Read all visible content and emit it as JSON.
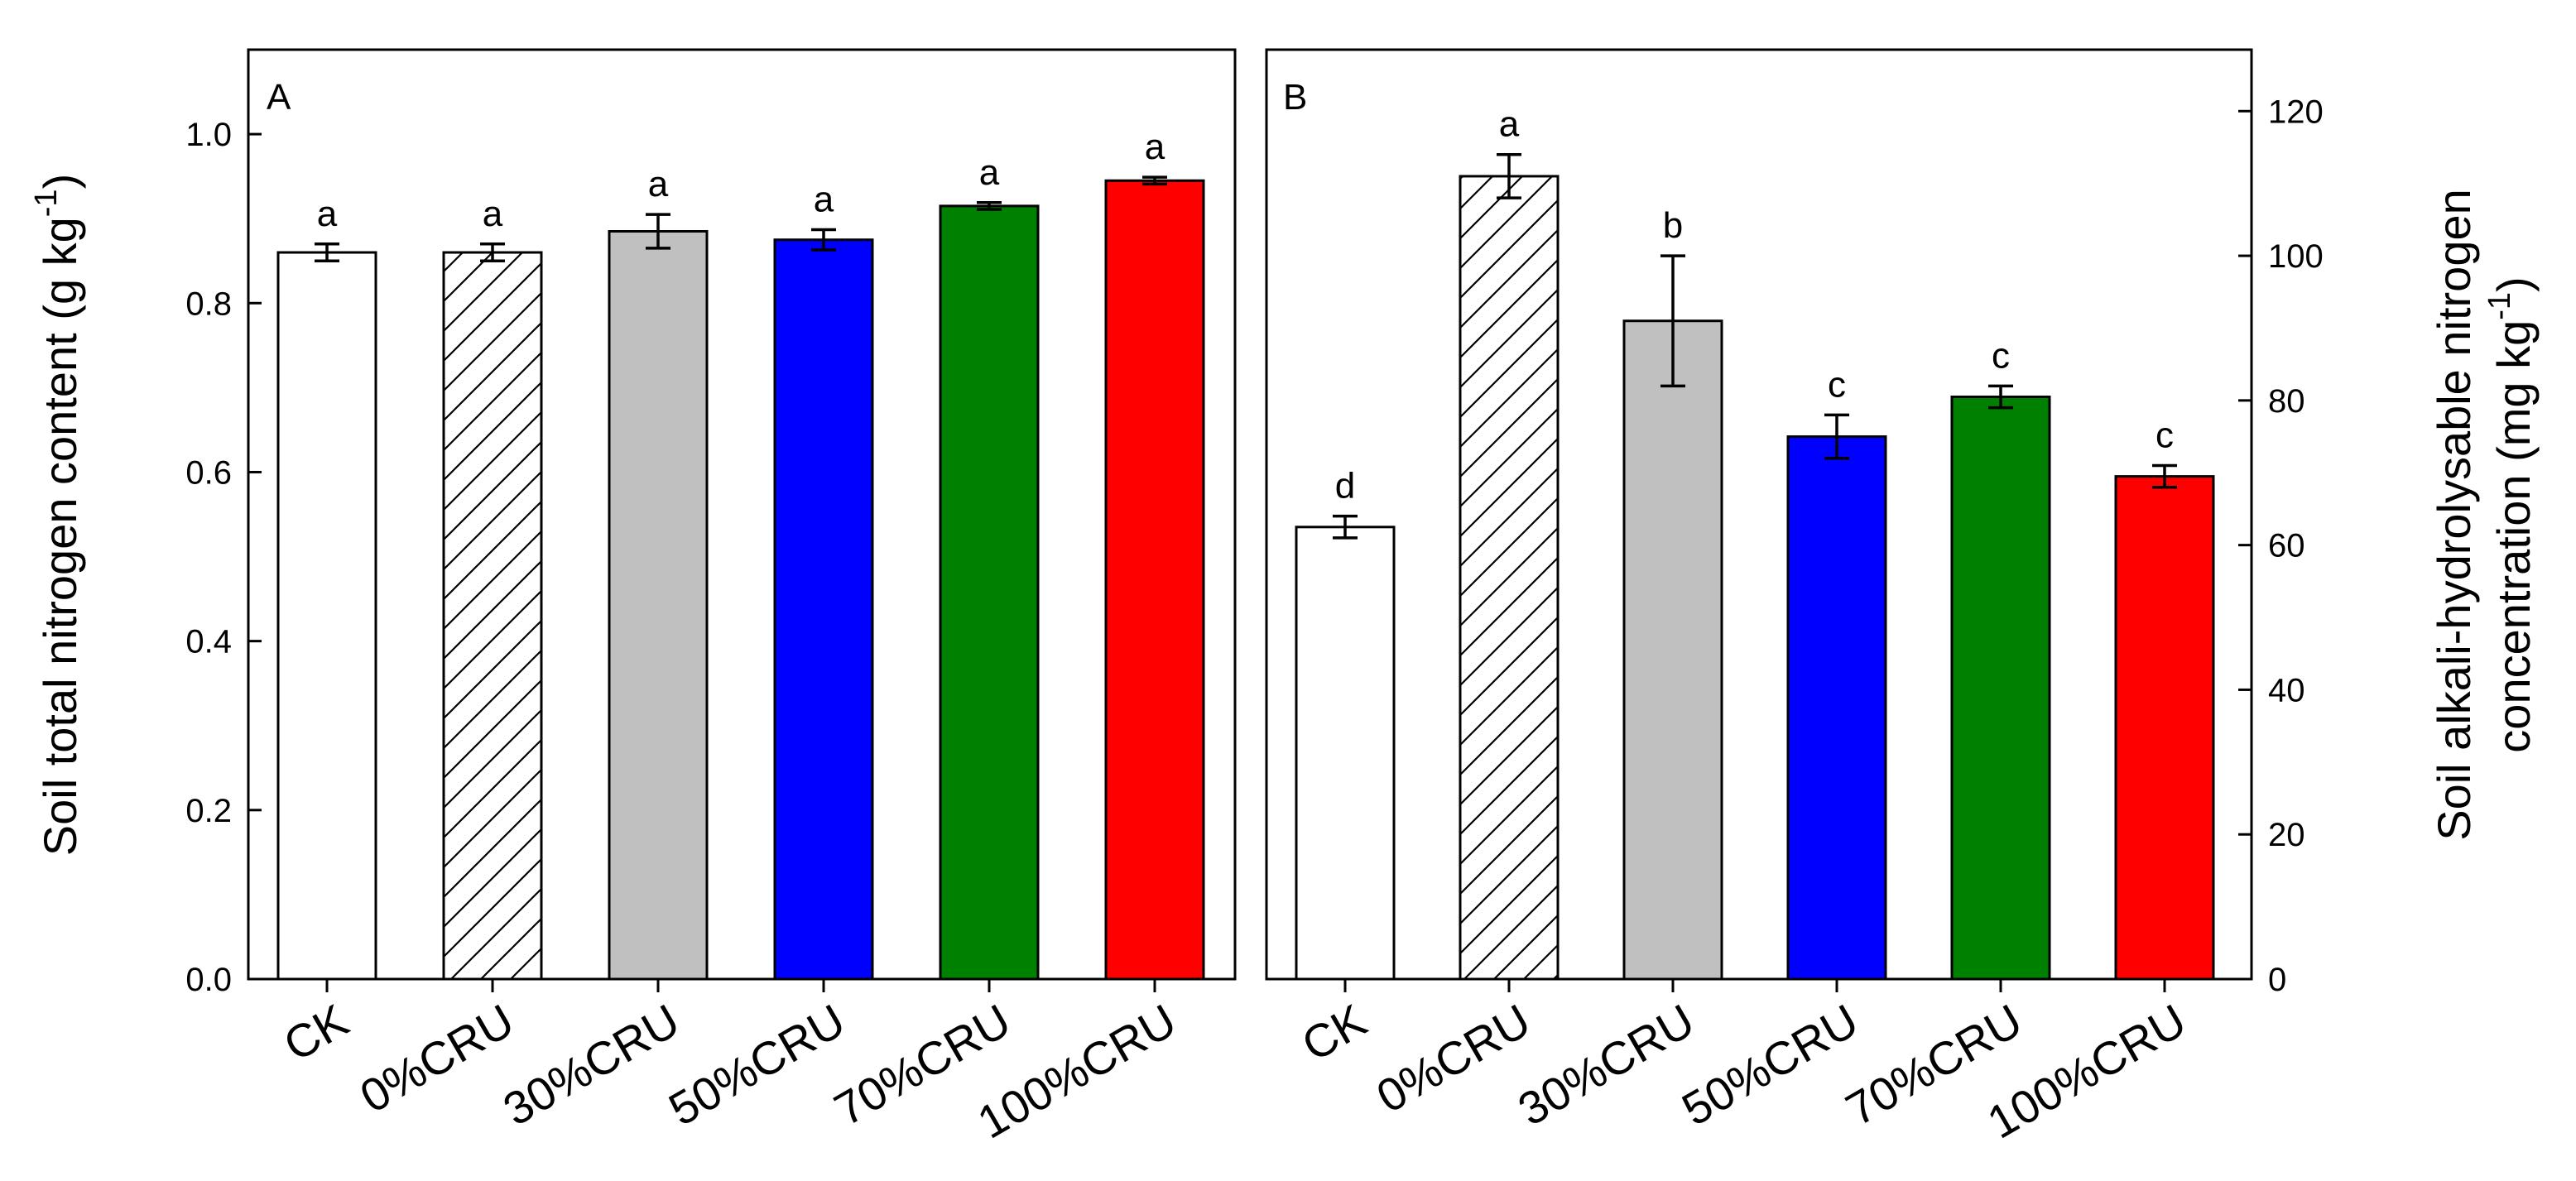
{
  "colors": {
    "CK": "#ffffff",
    "0%CRU": "#ffffff",
    "30%CRU": "#c0c0c0",
    "50%CRU": "#0000ff",
    "70%CRU": "#008000",
    "100%CRU": "#ff0000",
    "stroke": "#000000"
  },
  "chart_data": [
    {
      "type": "bar",
      "panel": "A",
      "categories": [
        "CK",
        "0%CRU",
        "30%CRU",
        "50%CRU",
        "70%CRU",
        "100%CRU"
      ],
      "values": [
        0.86,
        0.86,
        0.885,
        0.875,
        0.915,
        0.945
      ],
      "errors": [
        0.01,
        0.01,
        0.02,
        0.012,
        0.004,
        0.004
      ],
      "letters": [
        "a",
        "a",
        "a",
        "a",
        "a",
        "a"
      ],
      "hatched": [
        false,
        true,
        false,
        false,
        false,
        false
      ],
      "ylim": [
        0,
        1.1
      ],
      "yticks": [
        "0.0",
        "0.2",
        "0.4",
        "0.6",
        "0.8",
        "1.0"
      ],
      "ylabel": "Soil total nitrogen content (g kg",
      "ylabel_sup": "-1",
      "ylabel_end": ")",
      "axis_side": "left"
    },
    {
      "type": "bar",
      "panel": "B",
      "categories": [
        "CK",
        "0%CRU",
        "30%CRU",
        "50%CRU",
        "70%CRU",
        "100%CRU"
      ],
      "values": [
        62.5,
        111,
        91,
        75,
        80.5,
        69.5
      ],
      "errors": [
        1.5,
        3.0,
        9.0,
        3.0,
        1.5,
        1.5
      ],
      "letters": [
        "d",
        "a",
        "b",
        "c",
        "c",
        "c"
      ],
      "hatched": [
        false,
        true,
        false,
        false,
        false,
        false
      ],
      "ylim": [
        0,
        128.5
      ],
      "yticks": [
        "0",
        "20",
        "40",
        "60",
        "80",
        "100",
        "120"
      ],
      "ylabel_line1": "Soil alkali-hydrolysable nitrogen",
      "ylabel_line2": "concentration  (mg kg",
      "ylabel_sup": "-1",
      "ylabel_end": ")",
      "axis_side": "right"
    }
  ]
}
